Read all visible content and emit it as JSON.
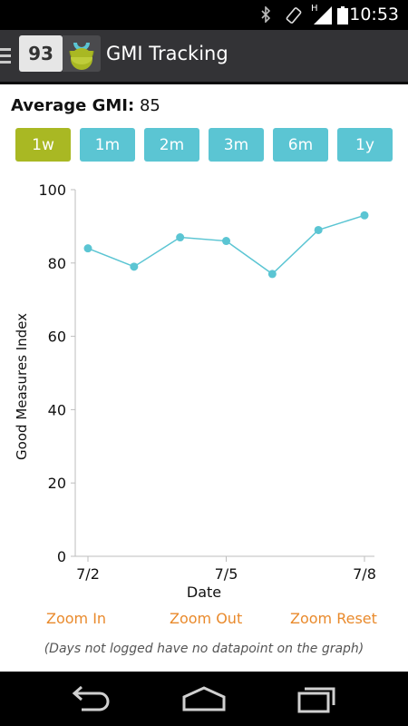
{
  "status_bar": {
    "time": "10:53",
    "network_label": "H",
    "icons": [
      "bluetooth-icon",
      "screen-rotation-icon",
      "signal-icon",
      "battery-icon"
    ]
  },
  "action_bar": {
    "badge_value": "93",
    "title": "GMI Tracking",
    "icons": [
      "drawer-icon",
      "app-logo-icon"
    ]
  },
  "summary": {
    "label": "Average GMI:",
    "value": "85"
  },
  "ranges": [
    {
      "label": "1w",
      "active": true
    },
    {
      "label": "1m",
      "active": false
    },
    {
      "label": "2m",
      "active": false
    },
    {
      "label": "3m",
      "active": false
    },
    {
      "label": "6m",
      "active": false
    },
    {
      "label": "1y",
      "active": false
    }
  ],
  "colors": {
    "accent": "#5bc5d3",
    "active_range": "#a9b823",
    "zoom_link": "#e98a2c",
    "line": "#5bc5d3"
  },
  "chart_data": {
    "type": "line",
    "xlabel": "Date",
    "ylabel": "Good Measures Index",
    "ylim": [
      0,
      100
    ],
    "yticks": [
      0,
      20,
      40,
      60,
      80,
      100
    ],
    "xticks": [
      {
        "day": 2,
        "label": "7/2"
      },
      {
        "day": 5,
        "label": "7/5"
      },
      {
        "day": 8,
        "label": "7/8"
      }
    ],
    "x": [
      "7/2",
      "7/3",
      "7/4",
      "7/5",
      "7/6",
      "7/7",
      "7/8"
    ],
    "values": [
      84,
      79,
      87,
      86,
      77,
      89,
      93
    ],
    "grid": false
  },
  "zoom": {
    "in_label": "Zoom In",
    "out_label": "Zoom Out",
    "reset_label": "Zoom Reset"
  },
  "note": "(Days not logged have no datapoint on the graph)",
  "nav_bar": {
    "icons": [
      "back-icon",
      "home-icon",
      "recents-icon"
    ]
  }
}
